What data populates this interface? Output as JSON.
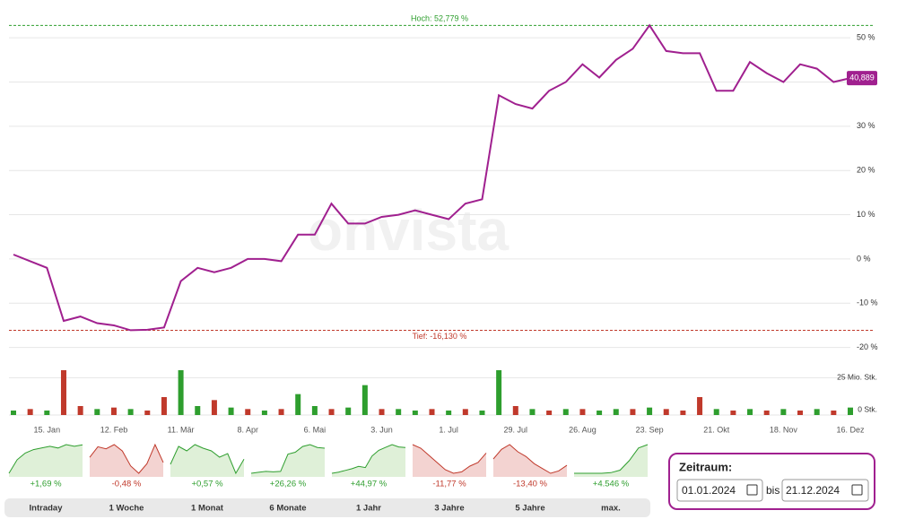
{
  "chart_data": [
    {
      "type": "line",
      "watermark": "onvista",
      "color": "#a0208f",
      "categories": [
        null,
        null,
        "15. Jan",
        null,
        null,
        null,
        "12. Feb",
        null,
        null,
        null,
        "11. Mär",
        null,
        null,
        null,
        "8. Apr",
        null,
        null,
        null,
        "6. Mai",
        null,
        null,
        null,
        "3. Jun",
        null,
        null,
        null,
        "1. Jul",
        null,
        null,
        null,
        "29. Jul",
        null,
        null,
        null,
        "26. Aug",
        null,
        null,
        null,
        "23. Sep",
        null,
        null,
        null,
        "21. Okt",
        null,
        null,
        null,
        "18. Nov",
        null,
        null,
        null,
        "16. Dez"
      ],
      "values": [
        1,
        -0.5,
        -2,
        -14,
        -13,
        -14.5,
        -15,
        -16.1,
        -16,
        -15.5,
        -5,
        -2,
        -3,
        -2,
        0,
        0,
        -0.5,
        5.5,
        5.5,
        12.5,
        8,
        8,
        9.5,
        10,
        11,
        10,
        9,
        12.5,
        13.5,
        37,
        35,
        34,
        38,
        40,
        44,
        41,
        45,
        47.5,
        52.8,
        47,
        46.5,
        46.5,
        38,
        38,
        44.5,
        42,
        40,
        44,
        43,
        40,
        40.889
      ],
      "ylim": [
        -22.5,
        56.5
      ],
      "yticks": [
        {
          "value": -20,
          "label": "-20 %"
        },
        {
          "value": -10,
          "label": "-10 %"
        },
        {
          "value": 0,
          "label": "0 %"
        },
        {
          "value": 10,
          "label": "10 %"
        },
        {
          "value": 20,
          "label": "20 %"
        },
        {
          "value": 30,
          "label": "30 %"
        },
        {
          "value": 40,
          "label": "40 %"
        },
        {
          "value": 50,
          "label": "50 %"
        }
      ],
      "grid": true,
      "high": {
        "value": 52.779,
        "label": "Hoch: 52,779 %",
        "color": "#2e9e2e"
      },
      "low": {
        "value": -16.13,
        "label": "Tief: -16,130 %",
        "color": "#c0392b"
      },
      "last_value": {
        "value": 40.889,
        "label": "40,889"
      }
    },
    {
      "type": "bar",
      "values": [
        3,
        4,
        3,
        30,
        6,
        4,
        5,
        4,
        3,
        12,
        30,
        6,
        10,
        5,
        4,
        3,
        4,
        14,
        6,
        4,
        5,
        20,
        4,
        4,
        3,
        4,
        3,
        4,
        3,
        30,
        6,
        4,
        3,
        4,
        4,
        3,
        4,
        4,
        5,
        4,
        3,
        12,
        4,
        3,
        4,
        3,
        4,
        3,
        4,
        3,
        5
      ],
      "colors": [
        "#2e9e2e",
        "#c0392b",
        "#2e9e2e",
        "#c0392b",
        "#c0392b",
        "#2e9e2e",
        "#c0392b",
        "#2e9e2e",
        "#c0392b",
        "#c0392b",
        "#2e9e2e",
        "#2e9e2e",
        "#c0392b",
        "#2e9e2e",
        "#c0392b",
        "#2e9e2e",
        "#c0392b",
        "#2e9e2e",
        "#2e9e2e",
        "#c0392b",
        "#2e9e2e",
        "#2e9e2e",
        "#c0392b",
        "#2e9e2e",
        "#2e9e2e",
        "#c0392b",
        "#2e9e2e",
        "#c0392b",
        "#2e9e2e",
        "#2e9e2e",
        "#c0392b",
        "#2e9e2e",
        "#c0392b",
        "#2e9e2e",
        "#c0392b",
        "#2e9e2e",
        "#2e9e2e",
        "#c0392b",
        "#2e9e2e",
        "#c0392b",
        "#c0392b",
        "#c0392b",
        "#2e9e2e",
        "#c0392b",
        "#2e9e2e",
        "#c0392b",
        "#2e9e2e",
        "#c0392b",
        "#2e9e2e",
        "#c0392b",
        "#2e9e2e"
      ],
      "ylim": [
        0,
        30
      ],
      "yticks": [
        {
          "value": 0,
          "label": "0 Stk."
        },
        {
          "value": 25,
          "label": "25 Mio. Stk."
        }
      ],
      "grid": true
    }
  ],
  "periods": [
    {
      "label": "Intraday",
      "change": "+1,69 %",
      "color": "#2e9e2e",
      "values": [
        0,
        0.8,
        1.2,
        1.4,
        1.5,
        1.6,
        1.5,
        1.7,
        1.6,
        1.69
      ]
    },
    {
      "label": "1 Woche",
      "change": "-0,48 %",
      "color": "#c0392b",
      "values": [
        0,
        1,
        0.8,
        1.2,
        0.6,
        -0.8,
        -1.5,
        -0.6,
        1.2,
        -0.48
      ]
    },
    {
      "label": "1 Monat",
      "change": "+0,57 %",
      "color": "#2e9e2e",
      "values": [
        0,
        2,
        1.5,
        2.2,
        1.8,
        1.5,
        0.8,
        1.2,
        -1,
        0.57
      ]
    },
    {
      "label": "6 Monate",
      "change": "+26,26 %",
      "color": "#2e9e2e",
      "values": [
        0,
        1,
        2,
        1.5,
        2,
        20,
        22,
        28,
        30,
        27,
        26.26
      ]
    },
    {
      "label": "1 Jahr",
      "change": "+44,97 %",
      "color": "#2e9e2e",
      "values": [
        0,
        2,
        5,
        8,
        12,
        10,
        30,
        40,
        45,
        50,
        46,
        44.97
      ]
    },
    {
      "label": "3 Jahre",
      "change": "-11,77 %",
      "color": "#c0392b",
      "values": [
        0,
        -5,
        -15,
        -25,
        -35,
        -40,
        -38,
        -30,
        -25,
        -11.77
      ]
    },
    {
      "label": "5 Jahre",
      "change": "-13,40 %",
      "color": "#c0392b",
      "values": [
        0,
        20,
        30,
        15,
        5,
        -10,
        -20,
        -30,
        -25,
        -13.4
      ]
    },
    {
      "label": "max.",
      "change": "+4.546 %",
      "color": "#2e9e2e",
      "values": [
        0,
        0,
        0,
        0,
        100,
        500,
        2000,
        4000,
        4546
      ]
    }
  ],
  "range": {
    "title": "Zeitraum:",
    "from": "01.01.2024",
    "separator": "bis",
    "to": "21.12.2024"
  }
}
